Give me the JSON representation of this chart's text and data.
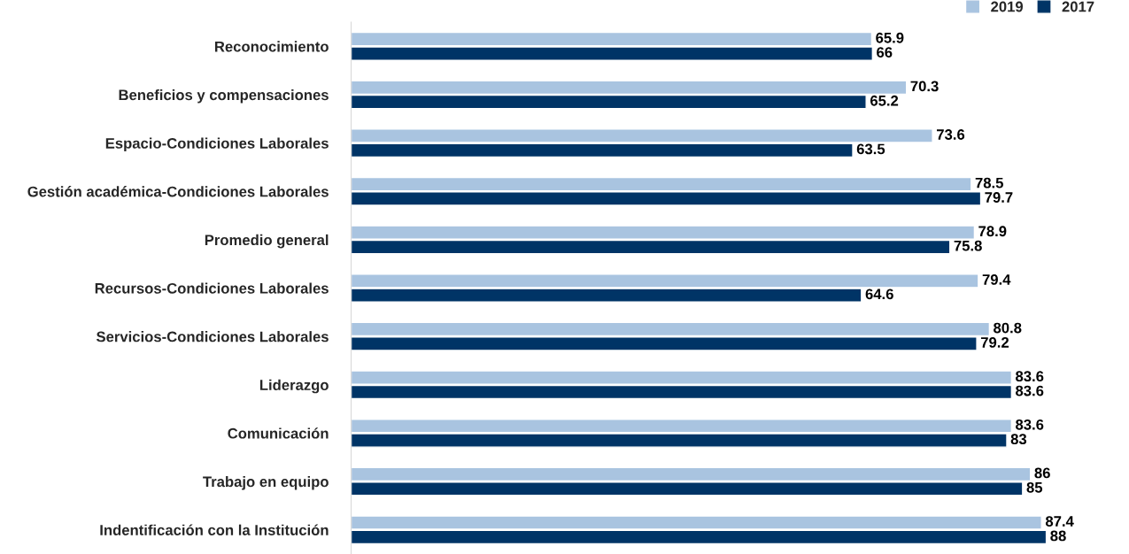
{
  "chart_data": {
    "type": "bar",
    "orientation": "horizontal",
    "categories": [
      "Reconocimiento",
      "Beneficios y compensaciones",
      "Espacio-Condiciones Laborales",
      "Gestión académica-Condiciones Laborales",
      "Promedio general",
      "Recursos-Condiciones Laborales",
      "Servicios-Condiciones Laborales",
      "Liderazgo",
      "Comunicación",
      "Trabajo en equipo",
      "Indentificación con la Institución"
    ],
    "series": [
      {
        "name": "2019",
        "color": "#a9c4e0",
        "values": [
          65.9,
          70.3,
          73.6,
          78.5,
          78.9,
          79.4,
          80.8,
          83.6,
          83.6,
          86,
          87.4
        ]
      },
      {
        "name": "2017",
        "color": "#003466",
        "values": [
          66,
          65.2,
          63.5,
          79.7,
          75.8,
          64.6,
          79.2,
          83.6,
          83,
          85,
          88
        ]
      }
    ],
    "tick_labels": "y",
    "data_labels": true,
    "legend": "top right",
    "grid": false
  }
}
